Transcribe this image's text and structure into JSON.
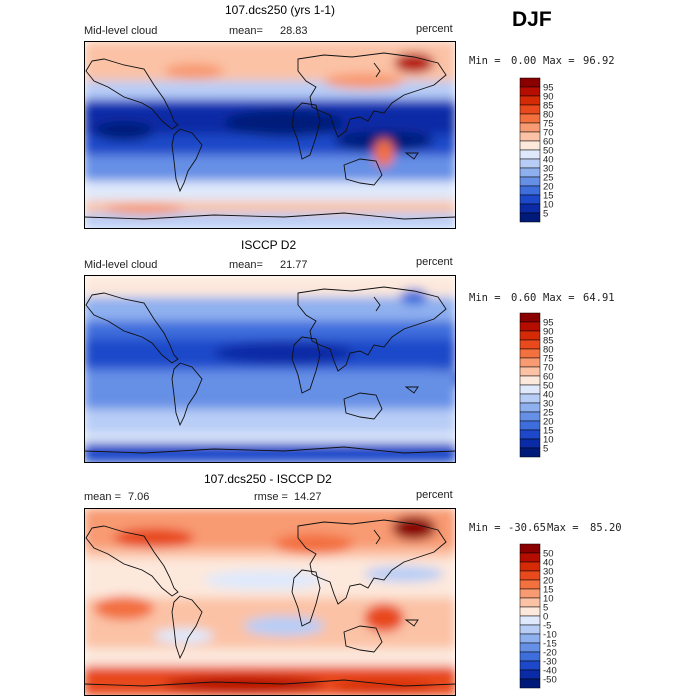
{
  "season": "DJF",
  "panels": [
    {
      "title": "107.dcs250 (yrs 1-1)",
      "variable": "Mid-level cloud",
      "mean_label": "mean=",
      "mean_value": "28.83",
      "units": "percent",
      "min_label": "Min =",
      "min_value": "0.00",
      "max_label": "Max =",
      "max_value": "96.92",
      "colorbar": {
        "levels": [
          "95",
          "90",
          "85",
          "80",
          "75",
          "70",
          "60",
          "50",
          "40",
          "30",
          "25",
          "20",
          "15",
          "10",
          "5"
        ],
        "colors": [
          "#8a0000",
          "#b50d00",
          "#d42a06",
          "#e84a1e",
          "#f3703f",
          "#f89a72",
          "#fbc2a6",
          "#fde8dc",
          "#dfe9fb",
          "#b8cdf6",
          "#8fb0ef",
          "#6690e6",
          "#3e6ddc",
          "#1c48c9",
          "#0a2aa6",
          "#001a7a"
        ]
      }
    },
    {
      "title": "ISCCP D2",
      "variable": "Mid-level cloud",
      "mean_label": "mean=",
      "mean_value": "21.77",
      "units": "percent",
      "min_label": "Min =",
      "min_value": "0.60",
      "max_label": "Max =",
      "max_value": "64.91",
      "colorbar": {
        "levels": [
          "95",
          "90",
          "85",
          "80",
          "75",
          "70",
          "60",
          "50",
          "40",
          "30",
          "25",
          "20",
          "15",
          "10",
          "5"
        ],
        "colors": [
          "#8a0000",
          "#b50d00",
          "#d42a06",
          "#e84a1e",
          "#f3703f",
          "#f89a72",
          "#fbc2a6",
          "#fde8dc",
          "#dfe9fb",
          "#b8cdf6",
          "#8fb0ef",
          "#6690e6",
          "#3e6ddc",
          "#1c48c9",
          "#0a2aa6",
          "#001a7a"
        ]
      }
    },
    {
      "title": "107.dcs250 - ISCCP D2",
      "mean_label": "mean =",
      "mean_value": "7.06",
      "rmse_label": "rmse =",
      "rmse_value": "14.27",
      "units": "percent",
      "min_label": "Min =",
      "min_value": "-30.65",
      "max_label": "Max =",
      "max_value": "85.20",
      "colorbar": {
        "levels": [
          "50",
          "40",
          "30",
          "20",
          "15",
          "10",
          "5",
          "0",
          "-5",
          "-10",
          "-15",
          "-20",
          "-30",
          "-40",
          "-50"
        ],
        "colors": [
          "#8a0000",
          "#b50d00",
          "#d42a06",
          "#e84a1e",
          "#f3703f",
          "#f89a72",
          "#fbc2a6",
          "#fde8dc",
          "#dfe9fb",
          "#b8cdf6",
          "#8fb0ef",
          "#6690e6",
          "#3e6ddc",
          "#1c48c9",
          "#0a2aa6",
          "#001a7a"
        ]
      }
    }
  ]
}
